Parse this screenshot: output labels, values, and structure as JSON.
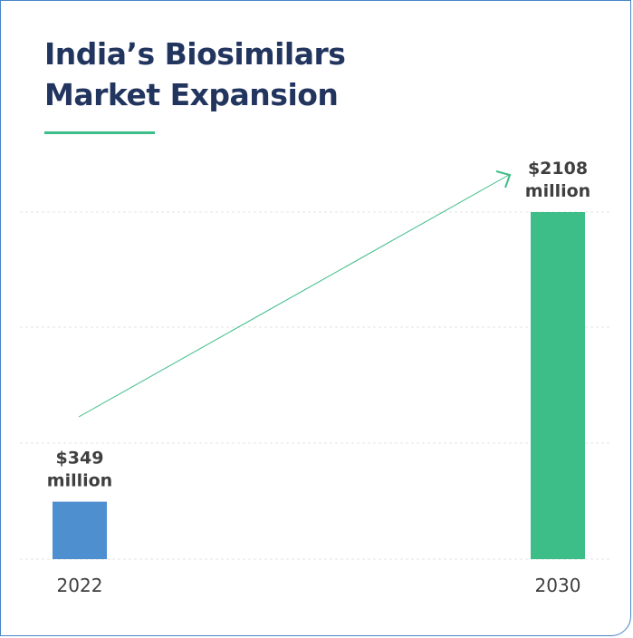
{
  "title_lines": [
    "India’s Biosimilars",
    "Market Expansion"
  ],
  "chart_data": {
    "type": "bar",
    "title": "India’s Biosimilars Market Expansion",
    "categories": [
      "2022",
      "2030"
    ],
    "values": [
      349,
      2108
    ],
    "unit_prefix": "$",
    "unit_suffix": "million",
    "bar_labels": [
      {
        "amount": "$349",
        "unit": "million"
      },
      {
        "amount": "$2108",
        "unit": "million"
      }
    ],
    "ylim": [
      0,
      2108
    ],
    "grid": true,
    "colors": [
      "#4e8fd0",
      "#3dbd87"
    ],
    "trend_arrow_color": "#3dbd87"
  }
}
